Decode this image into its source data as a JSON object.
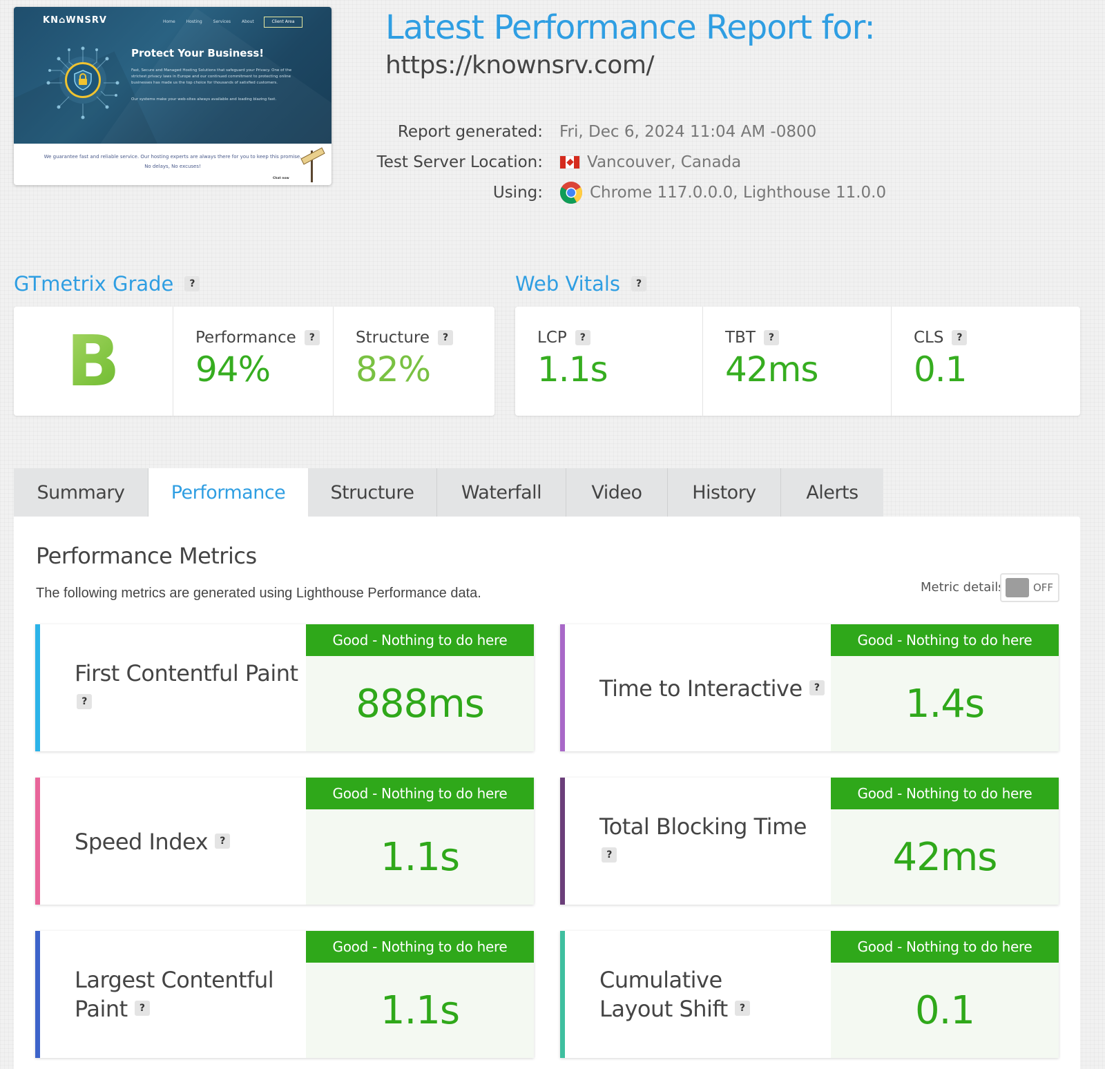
{
  "thumbnail": {
    "logo": "KN⌂WNSRV",
    "nav": [
      "Home",
      "Hosting",
      "Services",
      "About"
    ],
    "client_button": "Client Area",
    "headline": "Protect Your Business!",
    "description": "Fast, Secure and Managed Hosting Solutions that safeguard your Privacy. One of the strictest privacy laws in Europe and our continued commitment to protecting online businesses has made us the top choice for thousands of satisfied customers.",
    "description2": "Our systems make your web-sites always available and loading blazing fast.",
    "footer_text": "We guarantee fast and reliable service. Our hosting experts are always there for you to keep this promise. No delays, No excuses!",
    "chat": "Chat now"
  },
  "report": {
    "title": "Latest Performance Report for:",
    "url": "https://knownsrv.com/",
    "generated_label": "Report generated:",
    "generated_value": "Fri, Dec 6, 2024 11:04 AM -0800",
    "location_label": "Test Server Location:",
    "location_value": "Vancouver, Canada",
    "using_label": "Using:",
    "using_value": "Chrome 117.0.0.0, Lighthouse 11.0.0"
  },
  "grade": {
    "title": "GTmetrix Grade",
    "letter": "B",
    "performance_label": "Performance",
    "performance_value": "94%",
    "structure_label": "Structure",
    "structure_value": "82%"
  },
  "vitals": {
    "title": "Web Vitals",
    "lcp_label": "LCP",
    "lcp_value": "1.1s",
    "tbt_label": "TBT",
    "tbt_value": "42ms",
    "cls_label": "CLS",
    "cls_value": "0.1"
  },
  "tabs": [
    "Summary",
    "Performance",
    "Structure",
    "Waterfall",
    "Video",
    "History",
    "Alerts"
  ],
  "active_tab": "Performance",
  "panel": {
    "title": "Performance Metrics",
    "description": "The following metrics are generated using Lighthouse Performance data.",
    "toggle_label": "Metric details",
    "toggle_state": "OFF"
  },
  "metrics": [
    {
      "name": "First Contentful Paint",
      "badge": "Good - Nothing to do here",
      "value": "888ms",
      "color": "#2cb3e8"
    },
    {
      "name": "Time to Interactive",
      "badge": "Good - Nothing to do here",
      "value": "1.4s",
      "color": "#a868c8"
    },
    {
      "name": "Speed Index",
      "badge": "Good - Nothing to do here",
      "value": "1.1s",
      "color": "#e8659a"
    },
    {
      "name": "Total Blocking Time",
      "badge": "Good - Nothing to do here",
      "value": "42ms",
      "color": "#6b3f7a"
    },
    {
      "name": "Largest Contentful Paint",
      "badge": "Good - Nothing to do here",
      "value": "1.1s",
      "color": "#3d63c9"
    },
    {
      "name": "Cumulative Layout Shift",
      "badge": "Good - Nothing to do here",
      "value": "0.1",
      "color": "#3fbf9f"
    }
  ],
  "colors": {
    "accent_blue": "#2f9ee2",
    "good_green": "#2fa81a"
  },
  "icons": {
    "help": "question-mark",
    "flag": "canada-flag-icon",
    "browser": "chrome-icon"
  }
}
